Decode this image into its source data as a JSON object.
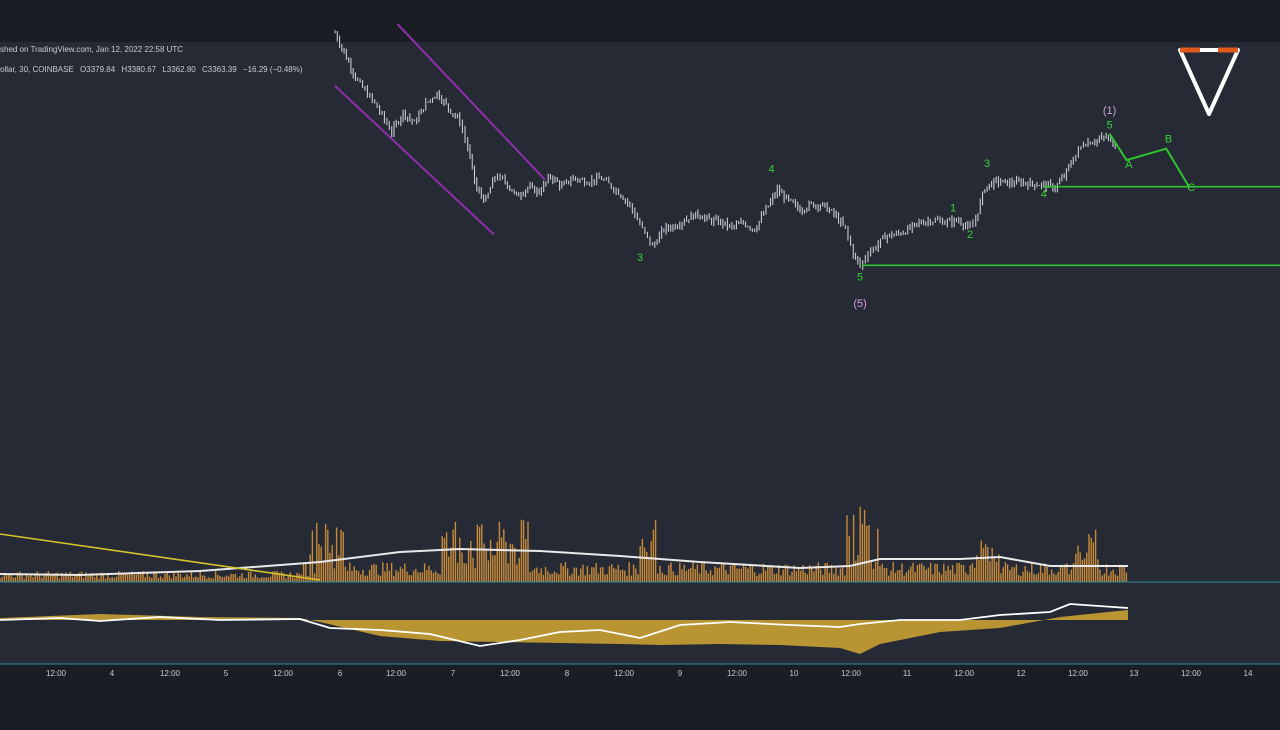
{
  "header": {
    "published": "shed on TradingView.com, Jan 12, 2022 22:58 UTC",
    "symbol": "ollar, 30, COINBASE",
    "open": "O3379.84",
    "high": "H3380.67",
    "low": "L3362.80",
    "close": "C3363.39",
    "change": "−16.29 (−0.48%)"
  },
  "colors": {
    "background": "#252a35",
    "price_bars": "#c9cbd0",
    "wave_labels": "#39d439",
    "wave_lines": "#2fc42f",
    "channel": "#8e2fa8",
    "volume": "#c78a3a",
    "volume_ma": "#e8e8e8",
    "trendline": "#d6c22b",
    "indicator_fill": "#c9a032",
    "indicator_line": "#ffffff",
    "axis_line": "#2e8fa0",
    "degree_label": "#d49fdc",
    "logo_outer": "#e05a1e",
    "logo_inner": "#ffffff"
  },
  "logo": {
    "icon": "down-triangle-logo-icon"
  },
  "chart_data": {
    "type": "ohlc-bar",
    "x_ticks": [
      "12:00",
      "4",
      "12:00",
      "5",
      "12:00",
      "6",
      "12:00",
      "7",
      "12:00",
      "8",
      "12:00",
      "9",
      "12:00",
      "10",
      "12:00",
      "11",
      "12:00",
      "12",
      "12:00",
      "13",
      "12:00",
      "14"
    ],
    "price_path": [
      {
        "t": 5.95,
        "p": 3390
      },
      {
        "t": 6.05,
        "p": 3362
      },
      {
        "t": 6.15,
        "p": 3335
      },
      {
        "t": 6.3,
        "p": 3310
      },
      {
        "t": 6.45,
        "p": 3278
      },
      {
        "t": 6.55,
        "p": 3300
      },
      {
        "t": 6.65,
        "p": 3288
      },
      {
        "t": 6.75,
        "p": 3310
      },
      {
        "t": 6.85,
        "p": 3322
      },
      {
        "t": 6.95,
        "p": 3305
      },
      {
        "t": 7.05,
        "p": 3290
      },
      {
        "t": 7.12,
        "p": 3260
      },
      {
        "t": 7.2,
        "p": 3212
      },
      {
        "t": 7.28,
        "p": 3200
      },
      {
        "t": 7.36,
        "p": 3228
      },
      {
        "t": 7.45,
        "p": 3222
      },
      {
        "t": 7.55,
        "p": 3205
      },
      {
        "t": 7.65,
        "p": 3215
      },
      {
        "t": 7.75,
        "p": 3210
      },
      {
        "t": 7.85,
        "p": 3228
      },
      {
        "t": 7.95,
        "p": 3216
      },
      {
        "t": 8.05,
        "p": 3226
      },
      {
        "t": 8.15,
        "p": 3222
      },
      {
        "t": 8.3,
        "p": 3225
      },
      {
        "t": 8.45,
        "p": 3210
      },
      {
        "t": 8.55,
        "p": 3195
      },
      {
        "t": 8.66,
        "p": 3168
      },
      {
        "t": 8.75,
        "p": 3148
      },
      {
        "t": 8.85,
        "p": 3168
      },
      {
        "t": 8.95,
        "p": 3172
      },
      {
        "t": 9.05,
        "p": 3180
      },
      {
        "t": 9.15,
        "p": 3185
      },
      {
        "t": 9.25,
        "p": 3178
      },
      {
        "t": 9.35,
        "p": 3176
      },
      {
        "t": 9.45,
        "p": 3170
      },
      {
        "t": 9.55,
        "p": 3175
      },
      {
        "t": 9.65,
        "p": 3168
      },
      {
        "t": 9.75,
        "p": 3190
      },
      {
        "t": 9.85,
        "p": 3212
      },
      {
        "t": 9.95,
        "p": 3200
      },
      {
        "t": 10.05,
        "p": 3190
      },
      {
        "t": 10.15,
        "p": 3196
      },
      {
        "t": 10.25,
        "p": 3195
      },
      {
        "t": 10.35,
        "p": 3185
      },
      {
        "t": 10.45,
        "p": 3168
      },
      {
        "t": 10.52,
        "p": 3140
      },
      {
        "t": 10.58,
        "p": 3126
      },
      {
        "t": 10.65,
        "p": 3142
      },
      {
        "t": 10.72,
        "p": 3148
      },
      {
        "t": 10.8,
        "p": 3160
      },
      {
        "t": 10.9,
        "p": 3162
      },
      {
        "t": 11.0,
        "p": 3167
      },
      {
        "t": 11.1,
        "p": 3175
      },
      {
        "t": 11.2,
        "p": 3178
      },
      {
        "t": 11.35,
        "p": 3176
      },
      {
        "t": 11.45,
        "p": 3178
      },
      {
        "t": 11.55,
        "p": 3168
      },
      {
        "t": 11.6,
        "p": 3180
      },
      {
        "t": 11.68,
        "p": 3215
      },
      {
        "t": 11.78,
        "p": 3222
      },
      {
        "t": 11.9,
        "p": 3220
      },
      {
        "t": 12.0,
        "p": 3221
      },
      {
        "t": 12.1,
        "p": 3219
      },
      {
        "t": 12.2,
        "p": 3218
      },
      {
        "t": 12.3,
        "p": 3215
      },
      {
        "t": 12.38,
        "p": 3228
      },
      {
        "t": 12.46,
        "p": 3248
      },
      {
        "t": 12.55,
        "p": 3265
      },
      {
        "t": 12.65,
        "p": 3268
      },
      {
        "t": 12.75,
        "p": 3272
      },
      {
        "t": 12.85,
        "p": 3260
      }
    ],
    "wave_labels": [
      {
        "label": "3",
        "t": 8.64,
        "p": 3132
      },
      {
        "label": "4",
        "t": 9.8,
        "p": 3232
      },
      {
        "label": "5",
        "t": 10.58,
        "p": 3110
      },
      {
        "label": "(5)",
        "t": 10.58,
        "p": 3080
      },
      {
        "label": "1",
        "t": 11.4,
        "p": 3188
      },
      {
        "label": "2",
        "t": 11.55,
        "p": 3158
      },
      {
        "label": "3",
        "t": 11.7,
        "p": 3238
      },
      {
        "label": "4",
        "t": 12.2,
        "p": 3204
      },
      {
        "label": "5",
        "t": 12.78,
        "p": 3282
      },
      {
        "label": "(1)",
        "t": 12.78,
        "p": 3298
      },
      {
        "label": "A",
        "t": 12.95,
        "p": 3237
      },
      {
        "label": "B",
        "t": 13.3,
        "p": 3266
      },
      {
        "label": "C",
        "t": 13.5,
        "p": 3211
      }
    ],
    "abc_projection": [
      {
        "t": 12.78,
        "p": 3276
      },
      {
        "t": 12.93,
        "p": 3246
      },
      {
        "t": 13.28,
        "p": 3259
      },
      {
        "t": 13.48,
        "p": 3216
      }
    ],
    "support_levels": [
      {
        "p": 3216,
        "from_t": 12.2
      },
      {
        "p": 3127,
        "from_t": 10.6
      }
    ],
    "channel": {
      "upper": [
        {
          "t": 6.5,
          "p": 3400
        },
        {
          "t": 7.8,
          "p": 3224
        }
      ],
      "lower": [
        {
          "t": 5.95,
          "p": 3330
        },
        {
          "t": 7.35,
          "p": 3162
        }
      ]
    },
    "volume_panel": {
      "series": "volume",
      "ma_series": "volume_ma"
    },
    "indicator_panel": {
      "series": "cumulative_delta",
      "fill": "area"
    }
  }
}
